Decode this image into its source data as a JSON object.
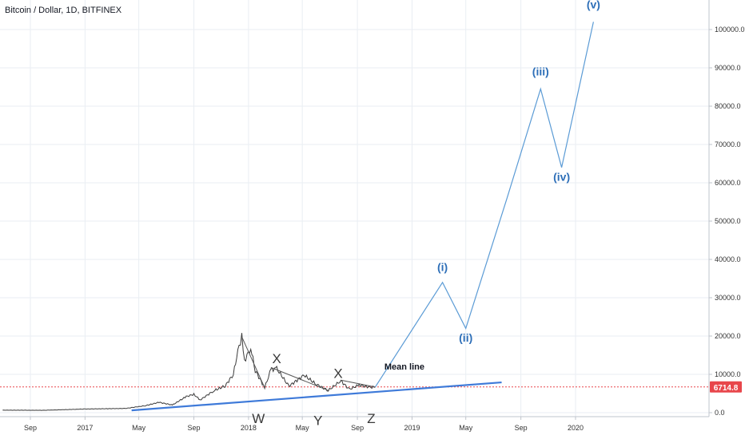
{
  "chart_data": {
    "type": "line",
    "title": "Bitcoin / Dollar, 1D, BITFINEX",
    "x_ticks": [
      "Sep",
      "2017",
      "May",
      "Sep",
      "2018",
      "May",
      "Sep",
      "2019",
      "May",
      "Sep",
      "2020"
    ],
    "y_ticks": [
      "0.0",
      "10000.0",
      "20000.0",
      "30000.0",
      "40000.0",
      "50000.0",
      "60000.0",
      "70000.0",
      "80000.0",
      "90000.0",
      "100000.0"
    ],
    "ylim": [
      0,
      108000
    ],
    "grid": true,
    "current_price": "6714.8",
    "price_history": [
      {
        "x": "2016-07-01",
        "y": 650
      },
      {
        "x": "2016-10-01",
        "y": 620
      },
      {
        "x": "2017-01-01",
        "y": 950
      },
      {
        "x": "2017-04-01",
        "y": 1100
      },
      {
        "x": "2017-05-15",
        "y": 1800
      },
      {
        "x": "2017-06-15",
        "y": 2700
      },
      {
        "x": "2017-07-15",
        "y": 2000
      },
      {
        "x": "2017-08-15",
        "y": 4200
      },
      {
        "x": "2017-09-01",
        "y": 4800
      },
      {
        "x": "2017-09-15",
        "y": 3300
      },
      {
        "x": "2017-10-15",
        "y": 5700
      },
      {
        "x": "2017-11-10",
        "y": 7000
      },
      {
        "x": "2017-11-28",
        "y": 10000
      },
      {
        "x": "2017-12-08",
        "y": 16000
      },
      {
        "x": "2017-12-17",
        "y": 19800
      },
      {
        "x": "2017-12-23",
        "y": 13500
      },
      {
        "x": "2018-01-06",
        "y": 17000
      },
      {
        "x": "2018-01-16",
        "y": 11000
      },
      {
        "x": "2018-02-06",
        "y": 6500
      },
      {
        "x": "2018-02-20",
        "y": 11200
      },
      {
        "x": "2018-03-05",
        "y": 11500
      },
      {
        "x": "2018-04-01",
        "y": 6900
      },
      {
        "x": "2018-05-05",
        "y": 9800
      },
      {
        "x": "2018-06-01",
        "y": 7400
      },
      {
        "x": "2018-06-28",
        "y": 5800
      },
      {
        "x": "2018-07-26",
        "y": 8300
      },
      {
        "x": "2018-08-14",
        "y": 6100
      },
      {
        "x": "2018-09-05",
        "y": 7200
      },
      {
        "x": "2018-10-01",
        "y": 6600
      },
      {
        "x": "2018-10-11",
        "y": 6700
      }
    ],
    "corrective_lines": [
      {
        "from": {
          "x": "2017-12-17",
          "y": 19800
        },
        "to": {
          "x": "2018-02-06",
          "y": 6500
        }
      },
      {
        "from": {
          "x": "2018-02-20",
          "y": 11800
        },
        "to": {
          "x": "2018-06-28",
          "y": 5800
        }
      },
      {
        "from": {
          "x": "2018-07-26",
          "y": 8500
        },
        "to": {
          "x": "2018-10-11",
          "y": 6700
        }
      }
    ],
    "projection": [
      {
        "x": "2018-10-11",
        "y": 6700
      },
      {
        "x": "2019-03-10",
        "y": 34000
      },
      {
        "x": "2019-05-01",
        "y": 22000
      },
      {
        "x": "2019-08-01",
        "y": 56000
      },
      {
        "x": "2019-10-15",
        "y": 84500
      },
      {
        "x": "2019-12-01",
        "y": 64000
      },
      {
        "x": "2020-02-10",
        "y": 102000
      }
    ],
    "mean_line": {
      "label": "Mean line",
      "from": {
        "x": "2017-04-15",
        "y": 600
      },
      "to": {
        "x": "2019-07-20",
        "y": 7900
      }
    },
    "wave_labels": [
      {
        "text": "(i)",
        "x": "2019-03-10",
        "y": 37000
      },
      {
        "text": "(ii)",
        "x": "2019-05-01",
        "y": 18500
      },
      {
        "text": "(iii)",
        "x": "2019-10-15",
        "y": 88000
      },
      {
        "text": "(iv)",
        "x": "2019-12-01",
        "y": 60500
      },
      {
        "text": "(v)",
        "x": "2020-02-10",
        "y": 105500
      }
    ],
    "corrective_labels": [
      {
        "text": "W",
        "x": "2018-01-23",
        "y": -1500
      },
      {
        "text": "X",
        "x": "2018-03-05",
        "y": 14200
      },
      {
        "text": "Y",
        "x": "2018-06-05",
        "y": -2000
      },
      {
        "text": "X",
        "x": "2018-07-20",
        "y": 10300
      },
      {
        "text": "Z",
        "x": "2018-10-02",
        "y": -1500
      }
    ],
    "colors": {
      "projection": "#5b9bd5",
      "mean_line": "#3e7ad9",
      "labels": "#2e6fb8",
      "price_line": "#e8464b",
      "price_badge": "#e8464b",
      "history": "#3a3a3a",
      "grid": "#eaeef3"
    }
  }
}
